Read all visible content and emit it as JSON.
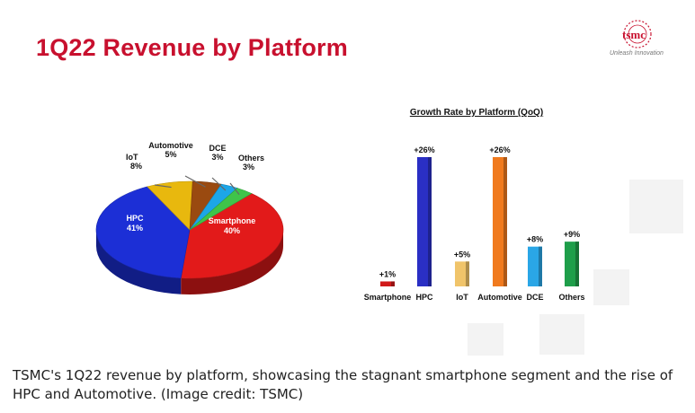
{
  "slide": {
    "title": "1Q22 Revenue by Platform",
    "logo_text": "tsmc",
    "logo_tagline": "Unleash Innovation"
  },
  "caption": "TSMC's 1Q22 revenue by platform, showcasing the stagnant smartphone segment and the rise of HPC and Automotive. (Image credit: TSMC)",
  "chart_data": [
    {
      "type": "pie",
      "title": "",
      "slices": [
        {
          "label": "Smartphone",
          "value": 40,
          "display": "40%",
          "color": "#e21a1a"
        },
        {
          "label": "HPC",
          "value": 41,
          "display": "41%",
          "color": "#1c2fd6"
        },
        {
          "label": "IoT",
          "value": 8,
          "display": "8%",
          "color": "#e8b80e"
        },
        {
          "label": "Automotive",
          "value": 5,
          "display": "5%",
          "color": "#9a4a10"
        },
        {
          "label": "DCE",
          "value": 3,
          "display": "3%",
          "color": "#1ca6e8"
        },
        {
          "label": "Others",
          "value": 3,
          "display": "3%",
          "color": "#3fc44a"
        }
      ]
    },
    {
      "type": "bar",
      "title": "Growth Rate by Platform (QoQ)",
      "categories": [
        "Smartphone",
        "HPC",
        "IoT",
        "Automotive",
        "DCE",
        "Others"
      ],
      "values": [
        1,
        26,
        5,
        26,
        8,
        9
      ],
      "value_labels": [
        "+1%",
        "+26%",
        "+5%",
        "+26%",
        "+8%",
        "+9%"
      ],
      "colors": [
        "#d11a1a",
        "#2a2fc4",
        "#f0c46a",
        "#f07a1e",
        "#2aa6e6",
        "#1e9e4a"
      ],
      "ylim": [
        0,
        26
      ],
      "grid": false
    }
  ]
}
